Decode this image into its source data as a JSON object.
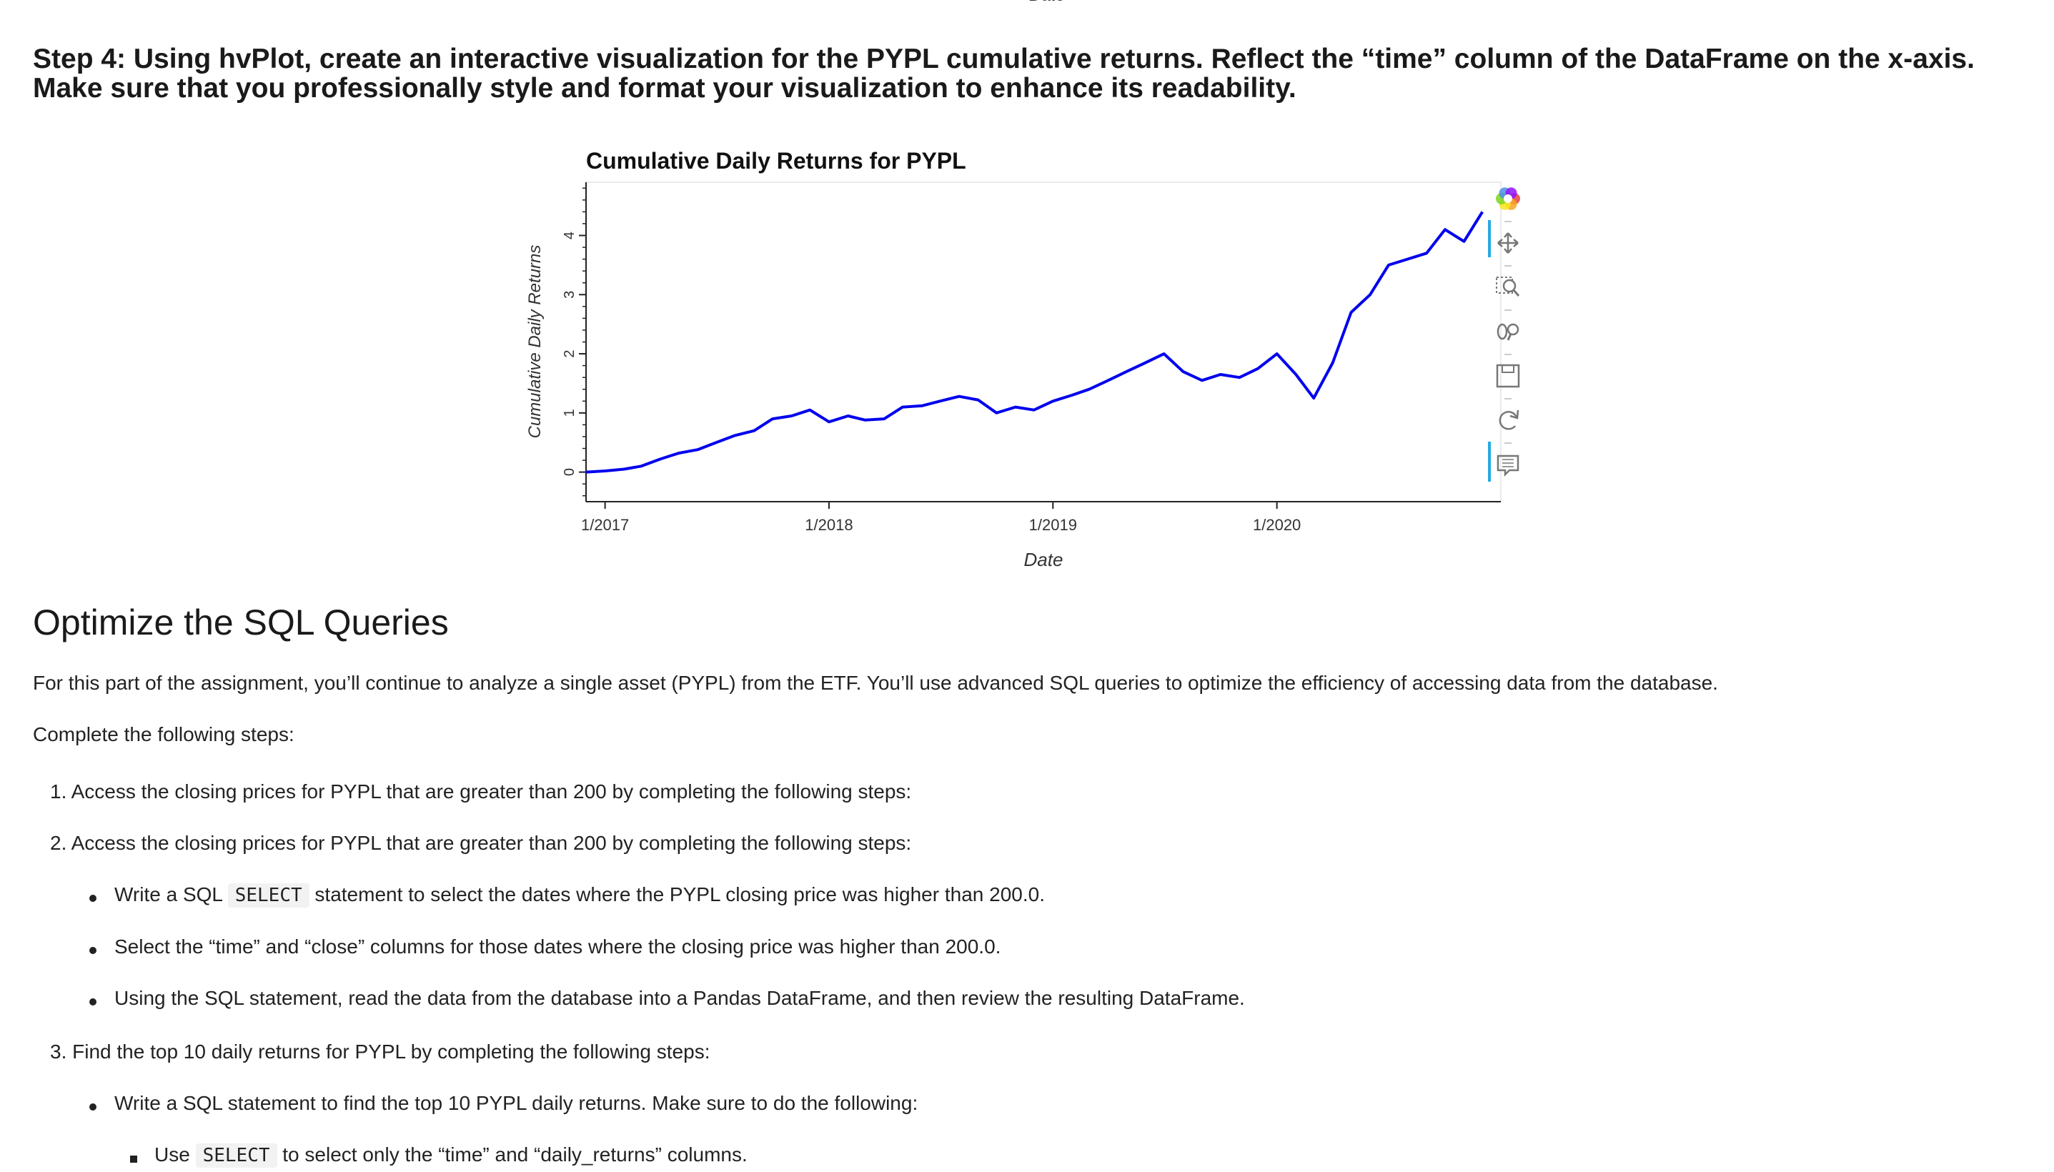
{
  "header": {
    "cut_axis_label": "Date"
  },
  "step4": {
    "heading": "Step 4: Using hvPlot, create an interactive visualization for the PYPL cumulative returns. Reflect the “time” column of the DataFrame on the x-axis. Make sure that you professionally style and format your visualization to enhance its readability."
  },
  "chart_data": {
    "type": "line",
    "title": "Cumulative Daily Returns for PYPL",
    "xlabel": "Date",
    "ylabel": "Cumulative Daily Returns",
    "x_ticks": [
      "1/2017",
      "1/2018",
      "1/2019",
      "1/2020"
    ],
    "y_ticks": [
      "0",
      "1",
      "2",
      "3",
      "4"
    ],
    "xlim": [
      "2016-12-01",
      "2020-12-31"
    ],
    "ylim": [
      -0.5,
      4.9
    ],
    "grid": false,
    "series": [
      {
        "color": "#0000ee",
        "x": [
          "2016-12-01",
          "2017-01-01",
          "2017-02-01",
          "2017-03-01",
          "2017-04-01",
          "2017-05-01",
          "2017-06-01",
          "2017-07-01",
          "2017-08-01",
          "2017-09-01",
          "2017-10-01",
          "2017-11-01",
          "2017-12-01",
          "2018-01-01",
          "2018-02-01",
          "2018-03-01",
          "2018-04-01",
          "2018-05-01",
          "2018-06-01",
          "2018-07-01",
          "2018-08-01",
          "2018-09-01",
          "2018-10-01",
          "2018-11-01",
          "2018-12-01",
          "2019-01-01",
          "2019-02-01",
          "2019-03-01",
          "2019-04-01",
          "2019-05-01",
          "2019-06-01",
          "2019-07-01",
          "2019-08-01",
          "2019-09-01",
          "2019-10-01",
          "2019-11-01",
          "2019-12-01",
          "2020-01-01",
          "2020-02-01",
          "2020-03-01",
          "2020-04-01",
          "2020-05-01",
          "2020-06-01",
          "2020-07-01",
          "2020-08-01",
          "2020-09-01",
          "2020-10-01",
          "2020-11-01",
          "2020-12-01"
        ],
        "values": [
          0.0,
          0.02,
          0.05,
          0.1,
          0.22,
          0.32,
          0.38,
          0.5,
          0.62,
          0.7,
          0.9,
          0.95,
          1.05,
          0.85,
          0.95,
          0.88,
          0.9,
          1.1,
          1.12,
          1.2,
          1.28,
          1.22,
          1.0,
          1.1,
          1.05,
          1.2,
          1.3,
          1.4,
          1.55,
          1.7,
          1.85,
          2.0,
          1.7,
          1.55,
          1.65,
          1.6,
          1.75,
          2.0,
          1.65,
          1.25,
          1.85,
          2.7,
          3.0,
          3.5,
          3.6,
          3.7,
          4.1,
          3.9,
          4.4
        ]
      }
    ]
  },
  "toolbar": {
    "tools": [
      "bokeh-logo-icon",
      "pan-icon",
      "box-zoom-icon",
      "wheel-zoom-icon",
      "save-icon",
      "reset-icon",
      "hover-icon"
    ]
  },
  "optimize": {
    "title": "Optimize the SQL Queries",
    "intro": "For this part of the assignment, you’ll continue to analyze a single asset (PYPL) from the ETF. You’ll use advanced SQL queries to optimize the efficiency of accessing data from the database.",
    "complete": "Complete the following steps:",
    "items": [
      {
        "num": "1.",
        "text": "Access the closing prices for PYPL that are greater than 200 by completing the following steps:"
      },
      {
        "num": "2.",
        "text": "Access the closing prices for PYPL that are greater than 200 by completing the following steps:"
      },
      {
        "num": "3.",
        "text": "Find the top 10 daily returns for PYPL by completing the following steps:"
      }
    ],
    "bullets2": [
      {
        "pre": "Write a SQL ",
        "code": "SELECT",
        "post": " statement to select the dates where the PYPL closing price was higher than 200.0."
      },
      {
        "text": "Select the “time” and “close” columns for those dates where the closing price was higher than 200.0."
      },
      {
        "text": "Using the SQL statement, read the data from the database into a Pandas DataFrame, and then review the resulting DataFrame."
      }
    ],
    "bullets3": [
      {
        "text": "Write a SQL statement to find the top 10 PYPL daily returns. Make sure to do the following:"
      }
    ],
    "sub3": [
      {
        "pre": "Use ",
        "code": "SELECT",
        "post": " to select only the “time” and “daily_returns” columns."
      }
    ]
  }
}
